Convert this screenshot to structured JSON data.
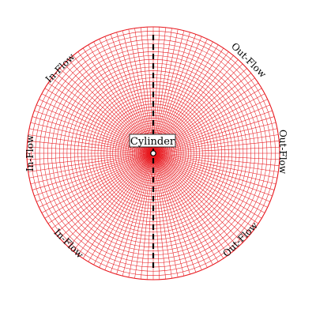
{
  "diagram": {
    "labels": {
      "cylinder": "Cylinder",
      "inflow_upper": "In-Flow",
      "inflow_left": "In-Flow",
      "inflow_lower": "In-Flow",
      "outflow_upper": "Out-Flow",
      "outflow_right": "Out-Flow",
      "outflow_lower": "Out-Flow"
    },
    "mesh": {
      "radial_lines": 128,
      "circumferential_rings": 46,
      "line_color": "#e8171d",
      "background_color": "#ffffff",
      "label_color": "#000000",
      "divider_color": "#000000"
    }
  }
}
